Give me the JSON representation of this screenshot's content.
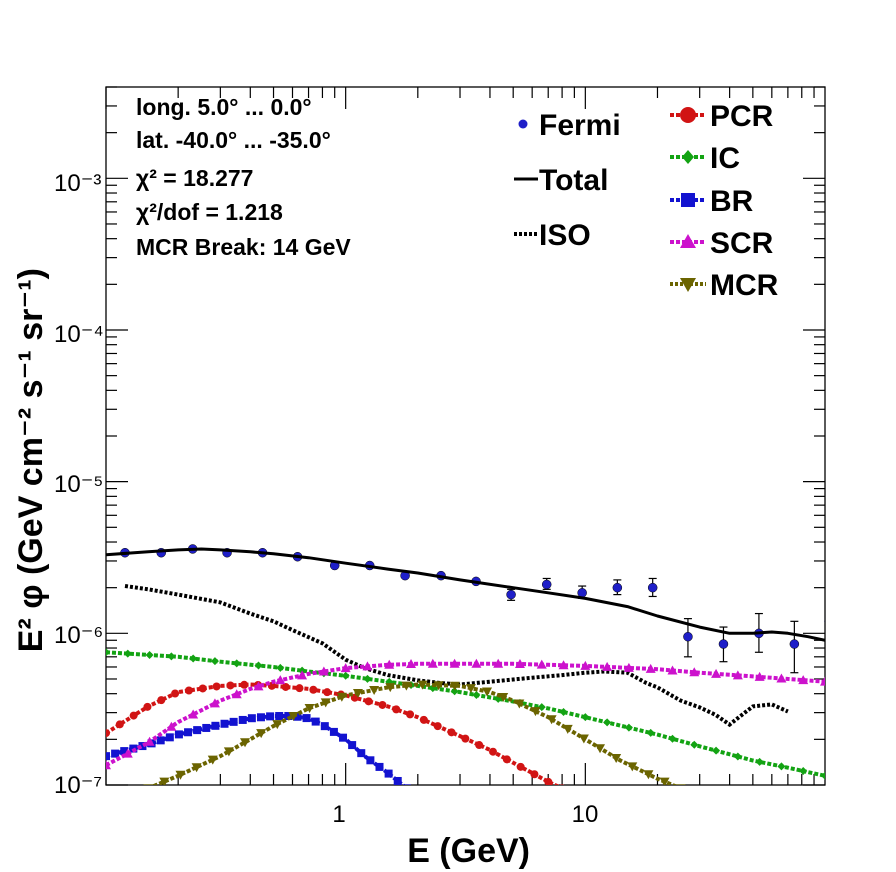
{
  "info": {
    "lines": [
      "long. 5.0° ... 0.0°",
      "lat. -40.0° ... -35.0°",
      "χ² = 18.277",
      "χ²/dof = 1.218",
      "MCR Break: 14 GeV"
    ]
  },
  "colors": {
    "fermi": "#1f1fc8",
    "total": "#000000",
    "iso": "#000000",
    "pcr": "#d11414",
    "ic": "#13a313",
    "br": "#1212d0",
    "scr": "#cc12cc",
    "mcr": "#6b6400"
  },
  "chart_data": {
    "type": "line",
    "xlabel": "E (GeV)",
    "ylabel": "E² φ (GeV cm⁻² s⁻¹ sr⁻¹)",
    "xscale": "log",
    "yscale": "log",
    "xlim": [
      0.1,
      100
    ],
    "ylim": [
      1e-07,
      0.004
    ],
    "x_tick_labels": [
      "1",
      "10"
    ],
    "y_tick_labels": [
      "10⁻⁷",
      "10⁻⁶",
      "10⁻⁵",
      "10⁻⁴",
      "10⁻³"
    ],
    "grid": false,
    "legend_placement": "top-right",
    "legend": [
      "Fermi",
      "Total",
      "ISO",
      "PCR",
      "IC",
      "BR",
      "SCR",
      "MCR"
    ],
    "series": [
      {
        "name": "Fermi",
        "style": "points-with-errors",
        "x": [
          0.12,
          0.17,
          0.23,
          0.32,
          0.45,
          0.63,
          0.9,
          1.26,
          1.77,
          2.5,
          3.5,
          4.9,
          6.9,
          9.7,
          13.6,
          19.1,
          26.8,
          37.7,
          53,
          74.5,
          104
        ],
        "y": [
          3.4e-06,
          3.4e-06,
          3.6e-06,
          3.4e-06,
          3.4e-06,
          3.2e-06,
          2.8e-06,
          2.8e-06,
          2.4e-06,
          2.4e-06,
          2.2e-06,
          1.8e-06,
          2.1e-06,
          1.85e-06,
          2e-06,
          2e-06,
          9.5e-07,
          8.5e-07,
          1e-06,
          8.5e-07,
          1.2e-06
        ],
        "err_up": [
          0,
          0,
          0,
          0,
          0,
          0,
          0,
          0,
          0,
          0,
          0,
          1.5e-07,
          2e-07,
          2e-07,
          2.5e-07,
          3e-07,
          3e-07,
          2.5e-07,
          3.5e-07,
          3.5e-07,
          5e-07
        ],
        "err_down": [
          0,
          0,
          0,
          0,
          0,
          0,
          0,
          0,
          0,
          0,
          0,
          1.5e-07,
          1.5e-07,
          1.5e-07,
          2e-07,
          2.5e-07,
          2.5e-07,
          2e-07,
          2.5e-07,
          3e-07,
          3e-07
        ]
      },
      {
        "name": "Total",
        "style": "solid",
        "x": [
          0.1,
          0.15,
          0.2,
          0.25,
          0.3,
          0.4,
          0.5,
          0.7,
          1.0,
          1.5,
          2.0,
          3.0,
          5.0,
          7.0,
          10,
          15,
          20,
          30,
          40,
          50,
          60,
          70,
          85,
          100
        ],
        "y": [
          3.3e-06,
          3.45e-06,
          3.55e-06,
          3.6e-06,
          3.55e-06,
          3.45e-06,
          3.35e-06,
          3.15e-06,
          2.9e-06,
          2.65e-06,
          2.5e-06,
          2.25e-06,
          2e-06,
          1.85e-06,
          1.7e-06,
          1.5e-06,
          1.3e-06,
          1.1e-06,
          1e-06,
          1e-06,
          1.02e-06,
          1e-06,
          9.5e-07,
          9e-07
        ]
      },
      {
        "name": "ISO",
        "style": "dotted",
        "x": [
          0.12,
          0.15,
          0.2,
          0.3,
          0.4,
          0.5,
          0.6,
          0.8,
          1.0,
          1.2,
          1.5,
          2.0,
          2.5,
          3.0,
          4.0,
          6.0,
          8.0,
          10,
          12,
          15,
          18,
          20,
          25,
          30,
          35,
          40,
          45,
          50,
          60,
          70
        ],
        "y": [
          2.05e-06,
          1.95e-06,
          1.8e-06,
          1.6e-06,
          1.35e-06,
          1.2e-06,
          1.05e-06,
          8.6e-07,
          6.7e-07,
          5.9e-07,
          5.3e-07,
          4.9e-07,
          4.7e-07,
          4.6e-07,
          4.8e-07,
          5.1e-07,
          5.3e-07,
          5.5e-07,
          5.6e-07,
          5.5e-07,
          4.7e-07,
          4.4e-07,
          3.6e-07,
          3.25e-07,
          2.9e-07,
          2.5e-07,
          2.9e-07,
          3.3e-07,
          3.4e-07,
          3.05e-07
        ]
      },
      {
        "name": "PCR",
        "style": "markers-circle",
        "x": [
          0.1,
          0.15,
          0.2,
          0.3,
          0.4,
          0.5,
          0.7,
          1.0,
          1.5,
          2.0,
          3.0,
          4.0,
          5.0,
          6.0,
          7.0,
          8.0
        ],
        "y": [
          2.2e-07,
          3.3e-07,
          4.1e-07,
          4.5e-07,
          4.6e-07,
          4.5e-07,
          4.3e-07,
          3.9e-07,
          3.3e-07,
          2.8e-07,
          2.1e-07,
          1.7e-07,
          1.4e-07,
          1.2e-07,
          1.05e-07,
          9.5e-08
        ]
      },
      {
        "name": "IC",
        "style": "markers-diamond",
        "x": [
          0.1,
          0.2,
          0.3,
          0.5,
          0.7,
          1.0,
          1.5,
          2.0,
          3.0,
          5.0,
          7.0,
          10,
          15,
          20,
          30,
          50,
          70,
          100
        ],
        "y": [
          7.5e-07,
          7e-07,
          6.5e-07,
          6e-07,
          5.6e-07,
          5.25e-07,
          4.8e-07,
          4.5e-07,
          4.1e-07,
          3.55e-07,
          3.2e-07,
          2.8e-07,
          2.4e-07,
          2.15e-07,
          1.8e-07,
          1.45e-07,
          1.3e-07,
          1.15e-07
        ]
      },
      {
        "name": "BR",
        "style": "markers-square",
        "x": [
          0.1,
          0.15,
          0.2,
          0.3,
          0.4,
          0.5,
          0.6,
          0.7,
          0.8,
          1.0,
          1.2,
          1.5,
          1.8
        ],
        "y": [
          1.55e-07,
          1.85e-07,
          2.15e-07,
          2.5e-07,
          2.75e-07,
          2.85e-07,
          2.85e-07,
          2.75e-07,
          2.5e-07,
          2e-07,
          1.55e-07,
          1.2e-07,
          9.5e-08
        ]
      },
      {
        "name": "SCR",
        "style": "markers-triangle-up",
        "x": [
          0.1,
          0.15,
          0.2,
          0.3,
          0.4,
          0.5,
          0.7,
          1.0,
          1.5,
          2.0,
          3.0,
          5.0,
          7.0,
          10,
          20,
          30,
          50,
          100
        ],
        "y": [
          1.35e-07,
          1.9e-07,
          2.6e-07,
          3.6e-07,
          4.3e-07,
          4.8e-07,
          5.4e-07,
          5.9e-07,
          6.2e-07,
          6.3e-07,
          6.3e-07,
          6.3e-07,
          6.2e-07,
          6.1e-07,
          5.8e-07,
          5.5e-07,
          5.2e-07,
          4.8e-07
        ]
      },
      {
        "name": "MCR",
        "style": "markers-triangle-down",
        "x": [
          0.15,
          0.2,
          0.3,
          0.4,
          0.5,
          0.7,
          1.0,
          1.5,
          2.0,
          3.0,
          4.0,
          5.0,
          7.0,
          10,
          14,
          20,
          25
        ],
        "y": [
          9.5e-08,
          1.15e-07,
          1.55e-07,
          2e-07,
          2.45e-07,
          3.2e-07,
          3.9e-07,
          4.4e-07,
          4.6e-07,
          4.5e-07,
          4.1e-07,
          3.6e-07,
          2.8e-07,
          2e-07,
          1.45e-07,
          1.1e-07,
          9.5e-08
        ]
      }
    ]
  }
}
